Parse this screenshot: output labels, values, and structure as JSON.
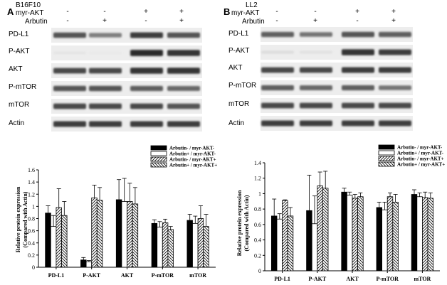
{
  "blots": [
    {
      "panel_letter": "A",
      "cell_line": "B16F10",
      "conditions": [
        {
          "name": "myr-AKT",
          "signs": [
            "-",
            "-",
            "+",
            "+"
          ]
        },
        {
          "name": "Arbutin",
          "signs": [
            "-",
            "+",
            "-",
            "+"
          ]
        }
      ],
      "proteins": [
        {
          "name": "PD-L1",
          "intensity": [
            0.75,
            0.55,
            0.85,
            0.75
          ]
        },
        {
          "name": "P-AKT",
          "intensity": [
            0.08,
            0.06,
            0.95,
            0.9
          ]
        },
        {
          "name": "AKT",
          "intensity": [
            0.8,
            0.8,
            0.9,
            0.9
          ]
        },
        {
          "name": "P-mTOR",
          "intensity": [
            0.75,
            0.75,
            0.7,
            0.65
          ]
        },
        {
          "name": "mTOR",
          "intensity": [
            0.8,
            0.8,
            0.8,
            0.75
          ]
        },
        {
          "name": "Actin",
          "intensity": [
            0.85,
            0.85,
            0.85,
            0.85
          ]
        }
      ]
    },
    {
      "panel_letter": "B",
      "cell_line": "LL2",
      "conditions": [
        {
          "name": "myr-AKT",
          "signs": [
            "-",
            "-",
            "+",
            "+"
          ]
        },
        {
          "name": "Arbutin",
          "signs": [
            "-",
            "+",
            "-",
            "+"
          ]
        }
      ],
      "proteins": [
        {
          "name": "PD-L1",
          "intensity": [
            0.7,
            0.6,
            0.75,
            0.7
          ]
        },
        {
          "name": "P-AKT",
          "intensity": [
            0.12,
            0.1,
            0.9,
            0.85
          ]
        },
        {
          "name": "AKT",
          "intensity": [
            0.8,
            0.8,
            0.85,
            0.85
          ]
        },
        {
          "name": "P-mTOR",
          "intensity": [
            0.7,
            0.65,
            0.7,
            0.6
          ]
        },
        {
          "name": "mTOR",
          "intensity": [
            0.8,
            0.8,
            0.8,
            0.8
          ]
        },
        {
          "name": "Actin",
          "intensity": [
            0.85,
            0.85,
            0.85,
            0.85
          ]
        }
      ]
    }
  ],
  "chart_data": [
    {
      "type": "bar",
      "title": "",
      "xlabel": "",
      "ylabel": "Relative protein expression",
      "ylabel2": "(Compared with Actin)",
      "categories": [
        "PD-L1",
        "P-AKT",
        "AKT",
        "P-mTOR",
        "mTOR"
      ],
      "ylim": [
        0,
        1.6
      ],
      "yticks": [
        "0",
        "0.2",
        "0.4",
        "0.6",
        "0.8",
        "1",
        "1.2",
        "1.4",
        "1.6"
      ],
      "legend_position": "top-right",
      "series": [
        {
          "name": "Arbutin- / myr-AKT-",
          "pattern": "solid",
          "values": [
            0.89,
            0.12,
            1.11,
            0.72,
            0.77
          ],
          "errors": [
            0.12,
            0.04,
            0.33,
            0.06,
            0.1
          ]
        },
        {
          "name": "Arbutin+ / myr-AKT-",
          "pattern": "open",
          "values": [
            0.67,
            0.09,
            1.08,
            0.66,
            0.72
          ],
          "errors": [
            0.18,
            0.02,
            0.38,
            0.09,
            0.12
          ]
        },
        {
          "name": "Arbutin- / myr-AKT+",
          "pattern": "hatch",
          "values": [
            0.98,
            1.14,
            1.08,
            0.73,
            0.8
          ],
          "errors": [
            0.31,
            0.21,
            0.3,
            0.06,
            0.21
          ]
        },
        {
          "name": "Arbutin+ / myr-AKT+",
          "pattern": "cross",
          "values": [
            0.85,
            1.1,
            1.04,
            0.62,
            0.67
          ],
          "errors": [
            0.23,
            0.21,
            0.27,
            0.05,
            0.2
          ]
        }
      ]
    },
    {
      "type": "bar",
      "title": "",
      "xlabel": "",
      "ylabel": "Relative protein expression",
      "ylabel2": "(Compared with Actin)",
      "categories": [
        "PD-L1",
        "P-AKT",
        "AKT",
        "P-mTOR",
        "mTOR"
      ],
      "ylim": [
        0,
        1.4
      ],
      "yticks": [
        "0",
        "0.2",
        "0.4",
        "0.6",
        "0.8",
        "1",
        "1.2",
        "1.4"
      ],
      "legend_position": "top-right",
      "series": [
        {
          "name": "Arbutin- / myr-AKT-",
          "pattern": "solid",
          "values": [
            0.71,
            0.78,
            1.02,
            0.82,
            0.99
          ],
          "errors": [
            0.22,
            0.46,
            0.05,
            0.07,
            0.06
          ]
        },
        {
          "name": "Arbutin+ / myr-AKT-",
          "pattern": "open",
          "values": [
            0.67,
            0.61,
            0.98,
            0.79,
            0.96
          ],
          "errors": [
            0.07,
            0.36,
            0.04,
            0.1,
            0.05
          ]
        },
        {
          "name": "Arbutin- / myr-AKT+",
          "pattern": "hatch",
          "values": [
            0.91,
            1.1,
            0.94,
            0.96,
            0.95
          ],
          "errors": [
            0.01,
            0.18,
            0.05,
            0.05,
            0.07
          ]
        },
        {
          "name": "Arbutin+ / myr-AKT+",
          "pattern": "cross",
          "values": [
            0.71,
            1.07,
            0.96,
            0.89,
            0.94
          ],
          "errors": [
            0.11,
            0.22,
            0.05,
            0.1,
            0.07
          ]
        }
      ]
    }
  ]
}
